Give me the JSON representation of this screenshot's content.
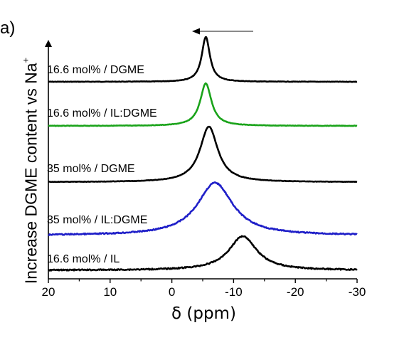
{
  "panel_label": "a)",
  "chart_data": {
    "type": "line",
    "xlabel": "δ (ppm)",
    "ylabel": "Increase DGME content vs Na",
    "ylabel_superscript": "+",
    "xlim": [
      20,
      -30
    ],
    "x_ticks": [
      "20",
      "10",
      "0",
      "-10",
      "-20",
      "-30"
    ],
    "x_tick_values": [
      20,
      10,
      0,
      -10,
      -20,
      -30
    ],
    "arrow_direction": "left",
    "series": [
      {
        "name": "16.6 mol% / DGME",
        "color": "#000000",
        "peak_ppm": -5.5,
        "fwhm_ppm": 1.6,
        "height_rel": 1.0
      },
      {
        "name": "16.6 mol% / IL:DGME",
        "color": "#1aa31a",
        "peak_ppm": -5.5,
        "fwhm_ppm": 2.2,
        "height_rel": 0.95
      },
      {
        "name": "35 mol% / DGME",
        "color": "#000000",
        "peak_ppm": -6.0,
        "fwhm_ppm": 3.5,
        "height_rel": 1.0
      },
      {
        "name": "35 mol% / IL:DGME",
        "color": "#1f1fc8",
        "peak_ppm": -7.0,
        "fwhm_ppm": 7.0,
        "height_rel": 1.0
      },
      {
        "name": "16.6 mol% / IL",
        "color": "#000000",
        "peak_ppm": -11.5,
        "fwhm_ppm": 5.5,
        "height_rel": 1.0
      }
    ]
  }
}
